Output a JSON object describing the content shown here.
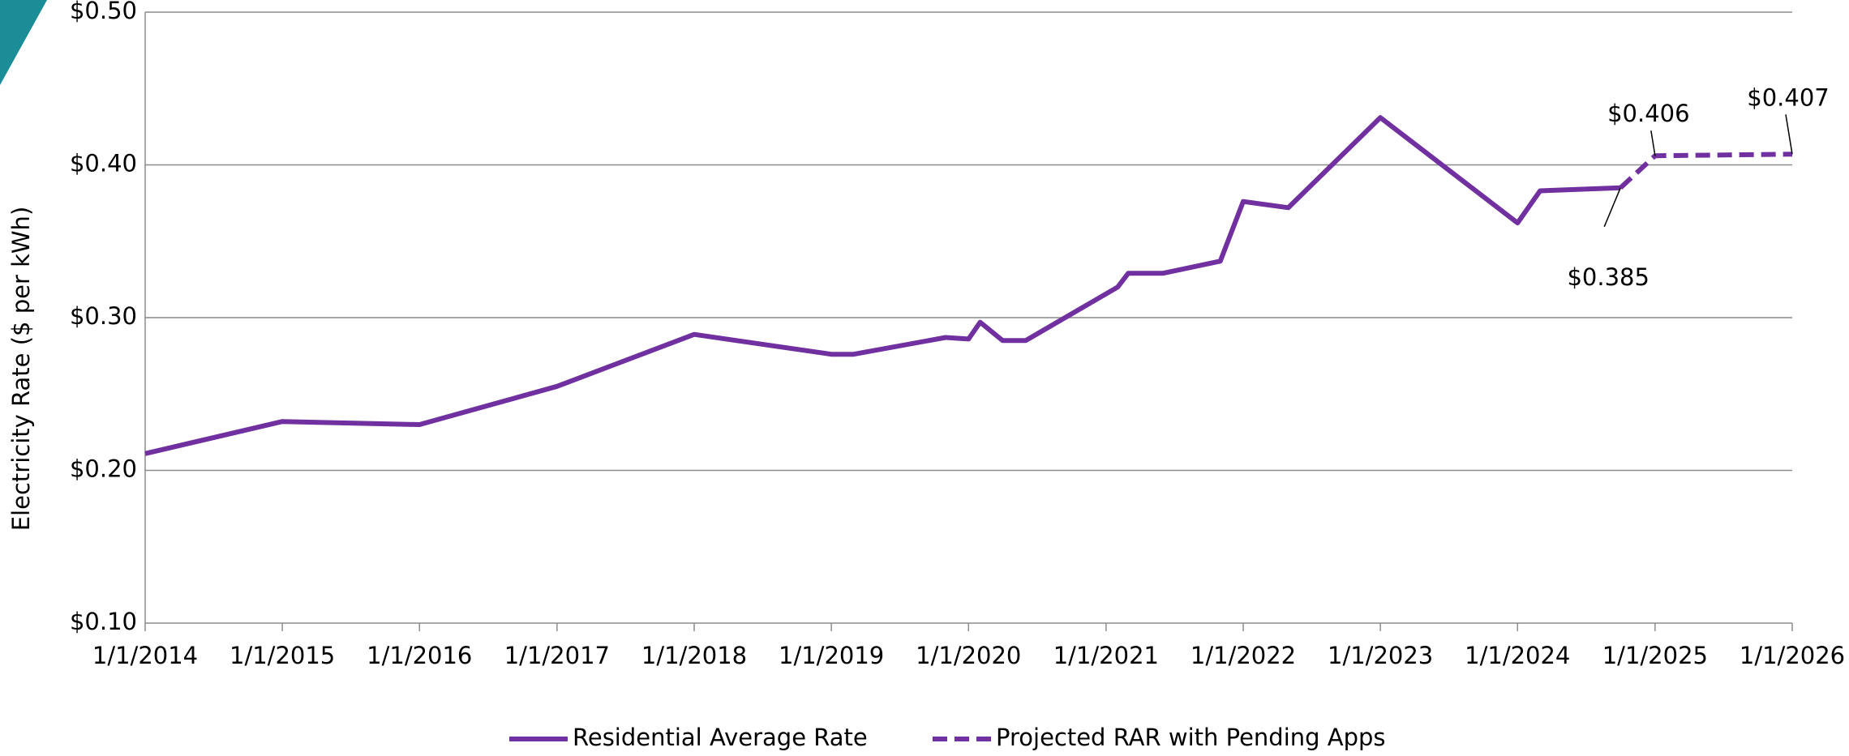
{
  "chart_data": {
    "type": "line",
    "y_label": "Electricity Rate ($ per kWh)",
    "xlim": [
      "2014-01-01",
      "2026-01-01"
    ],
    "xticks": [
      {
        "value": "2014-01-01",
        "label": "1/1/2014"
      },
      {
        "value": "2015-01-01",
        "label": "1/1/2015"
      },
      {
        "value": "2016-01-01",
        "label": "1/1/2016"
      },
      {
        "value": "2017-01-01",
        "label": "1/1/2017"
      },
      {
        "value": "2018-01-01",
        "label": "1/1/2018"
      },
      {
        "value": "2019-01-01",
        "label": "1/1/2019"
      },
      {
        "value": "2020-01-01",
        "label": "1/1/2020"
      },
      {
        "value": "2021-01-01",
        "label": "1/1/2021"
      },
      {
        "value": "2022-01-01",
        "label": "1/1/2022"
      },
      {
        "value": "2023-01-01",
        "label": "1/1/2023"
      },
      {
        "value": "2024-01-01",
        "label": "1/1/2024"
      },
      {
        "value": "2025-01-01",
        "label": "1/1/2025"
      },
      {
        "value": "2026-01-01",
        "label": "1/1/2026"
      }
    ],
    "ylim": [
      0.1,
      0.5
    ],
    "yticks": [
      {
        "value": 0.1,
        "label": "$0.10"
      },
      {
        "value": 0.2,
        "label": "$0.20"
      },
      {
        "value": 0.3,
        "label": "$0.30"
      },
      {
        "value": 0.4,
        "label": "$0.40"
      },
      {
        "value": 0.5,
        "label": "$0.50"
      }
    ],
    "grid": true,
    "legend": "bottom",
    "series": [
      {
        "name": "Residential Average Rate",
        "color": "#7030a0",
        "dashed": false,
        "x": [
          "2014-01-01",
          "2015-01-01",
          "2016-01-01",
          "2017-01-01",
          "2018-01-01",
          "2019-01-01",
          "2019-03-01",
          "2019-11-01",
          "2020-01-01",
          "2020-02-01",
          "2020-04-01",
          "2020-06-01",
          "2021-02-01",
          "2021-03-01",
          "2021-06-01",
          "2021-11-01",
          "2022-01-01",
          "2022-05-01",
          "2023-01-01",
          "2024-01-01",
          "2024-03-01",
          "2024-10-01"
        ],
        "values": [
          0.211,
          0.232,
          0.23,
          0.255,
          0.289,
          0.276,
          0.276,
          0.287,
          0.286,
          0.297,
          0.285,
          0.285,
          0.32,
          0.329,
          0.329,
          0.337,
          0.376,
          0.372,
          0.431,
          0.362,
          0.383,
          0.385
        ]
      },
      {
        "name": "Projected RAR with Pending Apps",
        "color": "#7030a0",
        "dashed": true,
        "x": [
          "2024-10-01",
          "2025-01-01",
          "2026-01-01"
        ],
        "values": [
          0.385,
          0.406,
          0.407
        ],
        "value_labels": [
          "$0.385",
          "$0.406",
          "$0.407"
        ]
      }
    ]
  }
}
